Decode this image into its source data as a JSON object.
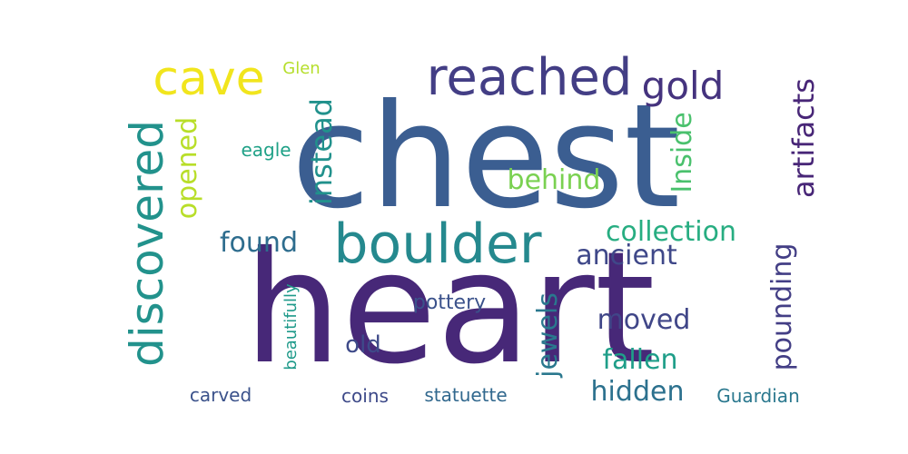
{
  "words": [
    {
      "id": "chest",
      "text": "chest",
      "color": "#3b5e91"
    },
    {
      "id": "heart",
      "text": "heart",
      "color": "#472878"
    },
    {
      "id": "boulder",
      "text": "boulder",
      "color": "#25898e"
    },
    {
      "id": "reached",
      "text": "reached",
      "color": "#433e85"
    },
    {
      "id": "discovered",
      "text": "discovered",
      "color": "#22928c"
    },
    {
      "id": "cave",
      "text": "cave",
      "color": "#f1e51d"
    },
    {
      "id": "gold",
      "text": "gold",
      "color": "#45337e"
    },
    {
      "id": "artifacts",
      "text": "artifacts",
      "color": "#482677"
    },
    {
      "id": "instead",
      "text": "instead",
      "color": "#21918c"
    },
    {
      "id": "opened",
      "text": "opened",
      "color": "#b8de29"
    },
    {
      "id": "inside",
      "text": "Inside",
      "color": "#4ac16d"
    },
    {
      "id": "behind",
      "text": "behind",
      "color": "#7ad151"
    },
    {
      "id": "found",
      "text": "found",
      "color": "#2e6d8e"
    },
    {
      "id": "collection",
      "text": "collection",
      "color": "#27ad81"
    },
    {
      "id": "ancient",
      "text": "ancient",
      "color": "#3f4889"
    },
    {
      "id": "pounding",
      "text": "pounding",
      "color": "#433e85"
    },
    {
      "id": "jewels",
      "text": "jewels",
      "color": "#2a788e"
    },
    {
      "id": "moved",
      "text": "moved",
      "color": "#404688"
    },
    {
      "id": "fallen",
      "text": "fallen",
      "color": "#1f9e89"
    },
    {
      "id": "hidden",
      "text": "hidden",
      "color": "#2c718e"
    },
    {
      "id": "old",
      "text": "old",
      "color": "#3e4a89"
    },
    {
      "id": "pottery",
      "text": "pottery",
      "color": "#3b528b"
    },
    {
      "id": "eagle",
      "text": "eagle",
      "color": "#1fa187"
    },
    {
      "id": "glen",
      "text": "Glen",
      "color": "#b5de2b"
    },
    {
      "id": "beautifully",
      "text": "beautifully",
      "color": "#1f9a8a"
    },
    {
      "id": "carved",
      "text": "carved",
      "color": "#3b528b"
    },
    {
      "id": "coins",
      "text": "coins",
      "color": "#3e4a89"
    },
    {
      "id": "statuette",
      "text": "statuette",
      "color": "#31688e"
    },
    {
      "id": "guardian",
      "text": "Guardian",
      "color": "#2a788e"
    }
  ]
}
